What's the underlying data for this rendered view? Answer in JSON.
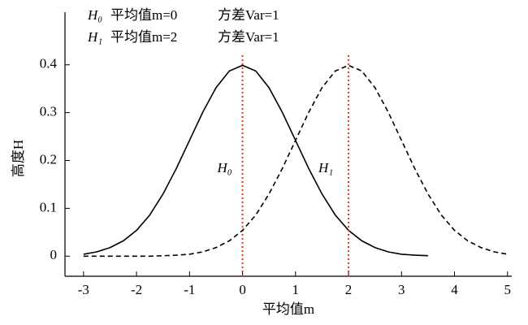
{
  "chart_data": {
    "type": "line",
    "xlabel": "平均值m",
    "ylabel": "高度H",
    "x": [
      -3,
      -2.75,
      -2.5,
      -2.25,
      -2,
      -1.75,
      -1.5,
      -1.25,
      -1,
      -0.75,
      -0.5,
      -0.25,
      0,
      0.25,
      0.5,
      0.75,
      1,
      1.25,
      1.5,
      1.75,
      2,
      2.25,
      2.5,
      2.75,
      3,
      3.25,
      3.5,
      3.75,
      4,
      4.25,
      4.5,
      4.75,
      5
    ],
    "series": [
      {
        "name": "H₀",
        "color": "#000000",
        "dash": false,
        "mean": 0,
        "legend_text": [
          "平均值m=0",
          "方差Var=1"
        ],
        "values": [
          0.004,
          0.009,
          0.018,
          0.032,
          0.054,
          0.086,
          0.13,
          0.183,
          0.242,
          0.301,
          0.352,
          0.387,
          0.399,
          0.387,
          0.352,
          0.301,
          0.242,
          0.183,
          0.13,
          0.086,
          0.054,
          0.032,
          0.018,
          0.009,
          0.004,
          0.002,
          0.001,
          null,
          null,
          null,
          null,
          null,
          null
        ]
      },
      {
        "name": "H₁",
        "color": "#000000",
        "dash": true,
        "mean": 2,
        "legend_text": [
          "平均值m=2",
          "方差Var=1"
        ],
        "values": [
          0,
          0,
          0,
          0,
          0,
          0,
          0.001,
          0.002,
          0.004,
          0.009,
          0.018,
          0.032,
          0.054,
          0.086,
          0.13,
          0.183,
          0.242,
          0.301,
          0.352,
          0.387,
          0.399,
          0.387,
          0.352,
          0.301,
          0.242,
          0.183,
          0.13,
          0.086,
          0.054,
          0.032,
          0.018,
          0.009,
          0.004
        ]
      }
    ],
    "mean_line_color": "#e03c1e",
    "xlim": [
      -3.35,
      5.08
    ],
    "ylim": [
      -0.042,
      0.51
    ],
    "xticks": [
      -3,
      -2,
      -1,
      0,
      1,
      2,
      3,
      4,
      5
    ],
    "yticks": [
      0,
      0.1,
      0.2,
      0.3,
      0.4
    ]
  }
}
